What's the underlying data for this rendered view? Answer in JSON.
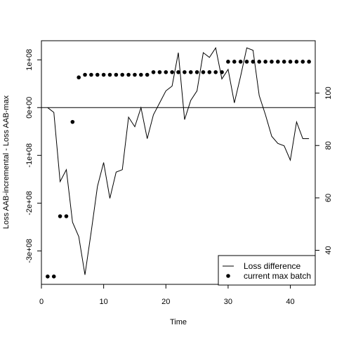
{
  "chart_data": {
    "type": "line",
    "title": "",
    "xlabel": "Time",
    "ylabel_left": "Loss AAB-incremental - Loss AAB-max",
    "ylabel_right": "",
    "xlim": [
      0,
      44
    ],
    "ylim_left": [
      -370000000.0,
      140000000.0
    ],
    "ylim_right": [
      27,
      120
    ],
    "x_ticks": [
      0,
      10,
      20,
      30,
      40
    ],
    "x_tick_labels": [
      "0",
      "10",
      "20",
      "30",
      "40"
    ],
    "y_left_ticks": [
      100000000,
      0,
      -100000000,
      -200000000,
      -300000000
    ],
    "y_left_tick_labels": [
      "1e+08",
      "0e+00",
      "-1e+08",
      "-2e+08",
      "-3e+08"
    ],
    "y_right_ticks": [
      40,
      60,
      80,
      100
    ],
    "y_right_tick_labels": [
      "40",
      "60",
      "80",
      "100"
    ],
    "reference_line_left": 0,
    "legend": {
      "position": "bottom-right",
      "entries": [
        "Loss difference",
        "current max batch"
      ]
    },
    "series": [
      {
        "name": "Loss difference",
        "style": "line",
        "axis": "left",
        "x": [
          1,
          2,
          3,
          4,
          5,
          6,
          7,
          8,
          9,
          10,
          11,
          12,
          13,
          14,
          15,
          16,
          17,
          18,
          19,
          20,
          21,
          22,
          23,
          24,
          25,
          26,
          27,
          28,
          29,
          30,
          31,
          32,
          33,
          34,
          35,
          36,
          37,
          38,
          39,
          40,
          41,
          42,
          43
        ],
        "values": [
          0,
          -10000000,
          -155000000,
          -130000000,
          -240000000,
          -270000000,
          -350000000,
          -260000000,
          -165000000,
          -115000000,
          -190000000,
          -135000000,
          -130000000,
          -20000000,
          -40000000,
          0,
          -65000000,
          -15000000,
          10000000,
          35000000,
          45000000,
          115000000,
          -25000000,
          15000000,
          35000000,
          115000000,
          105000000,
          125000000,
          60000000,
          80000000,
          10000000,
          65000000,
          125000000,
          120000000,
          25000000,
          -15000000,
          -60000000,
          -75000000,
          -80000000,
          -110000000,
          -30000000,
          -65000000,
          -65000000
        ]
      },
      {
        "name": "current max batch",
        "style": "points",
        "axis": "right",
        "x": [
          1,
          2,
          3,
          4,
          5,
          6,
          7,
          8,
          9,
          10,
          11,
          12,
          13,
          14,
          15,
          16,
          17,
          18,
          19,
          20,
          21,
          22,
          23,
          24,
          25,
          26,
          27,
          28,
          29,
          30,
          31,
          32,
          33,
          34,
          35,
          36,
          37,
          38,
          39,
          40,
          41,
          42,
          43
        ],
        "values": [
          30,
          30,
          53,
          53,
          89,
          106,
          107,
          107,
          107,
          107,
          107,
          107,
          107,
          107,
          107,
          107,
          107,
          108,
          108,
          108,
          108,
          108,
          108,
          108,
          108,
          108,
          108,
          108,
          108,
          112,
          112,
          112,
          112,
          112,
          112,
          112,
          112,
          112,
          112,
          112,
          112,
          112,
          112
        ]
      }
    ]
  }
}
